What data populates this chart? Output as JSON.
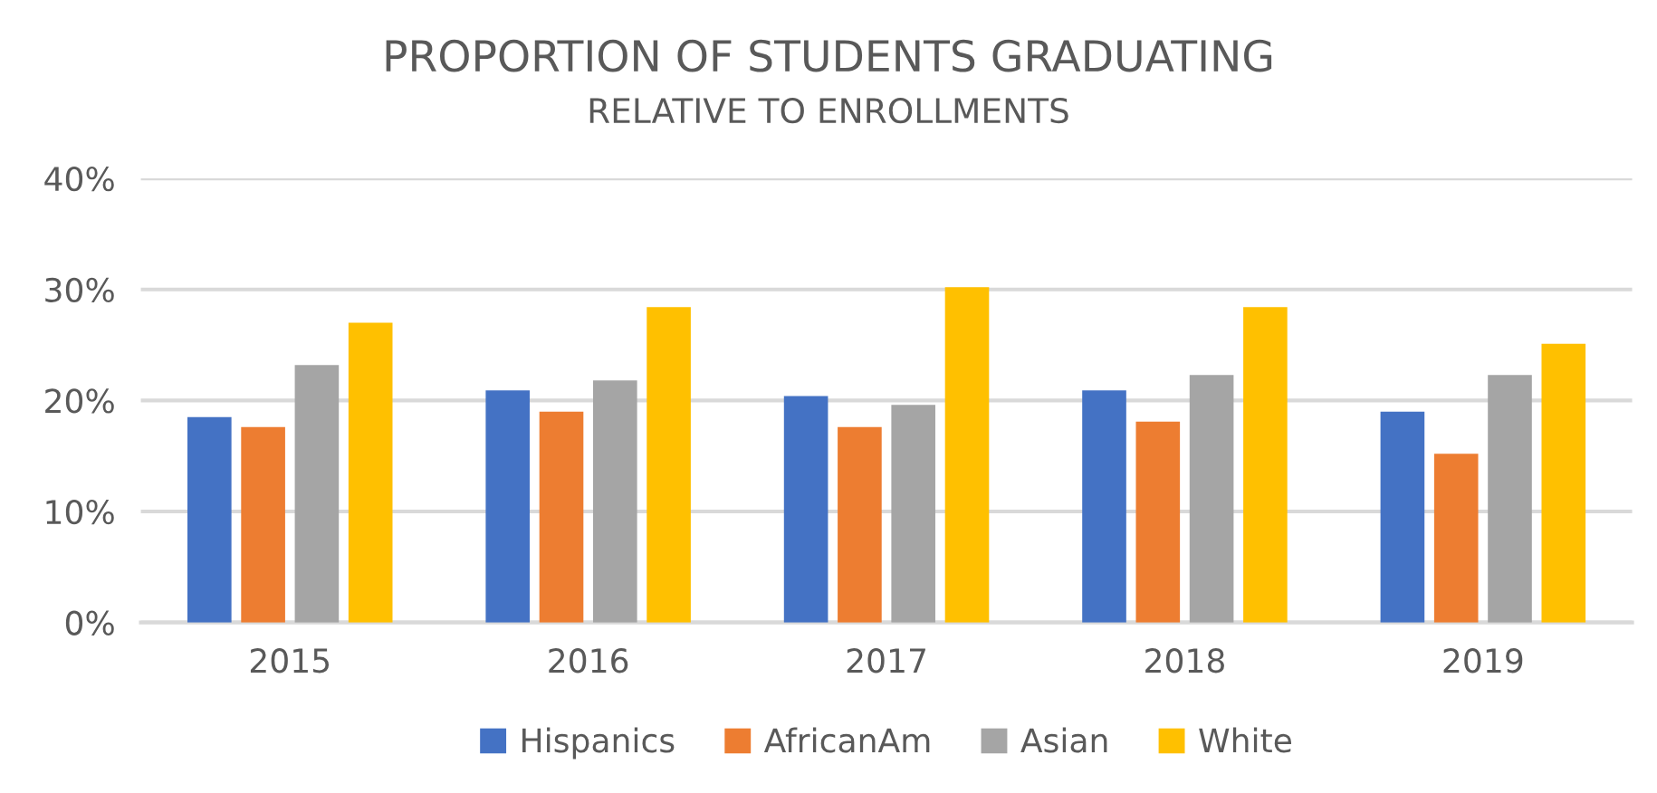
{
  "chart_data": {
    "type": "bar",
    "title": "PROPORTION OF STUDENTS GRADUATING",
    "subtitle": "RELATIVE TO ENROLLMENTS",
    "categories": [
      "2015",
      "2016",
      "2017",
      "2018",
      "2019"
    ],
    "series": [
      {
        "name": "Hispanics",
        "color": "#4472c4",
        "values": [
          18.5,
          20.9,
          20.4,
          20.9,
          19.0
        ]
      },
      {
        "name": "AfricanAm",
        "color": "#ed7d31",
        "values": [
          17.6,
          19.0,
          17.6,
          18.1,
          15.2
        ]
      },
      {
        "name": "Asian",
        "color": "#a5a5a5",
        "values": [
          23.2,
          21.8,
          19.6,
          22.3,
          22.3
        ]
      },
      {
        "name": "White",
        "color": "#ffc000",
        "values": [
          27.0,
          28.4,
          30.2,
          28.4,
          25.1
        ]
      }
    ],
    "ylim": [
      0,
      40
    ],
    "yticks": [
      {
        "value": 0,
        "label": "0%"
      },
      {
        "value": 10,
        "label": "10%"
      },
      {
        "value": 20,
        "label": "20%"
      },
      {
        "value": 30,
        "label": "30%"
      },
      {
        "value": 40,
        "label": "40%"
      }
    ],
    "grid": "y",
    "legend": "bottom"
  }
}
